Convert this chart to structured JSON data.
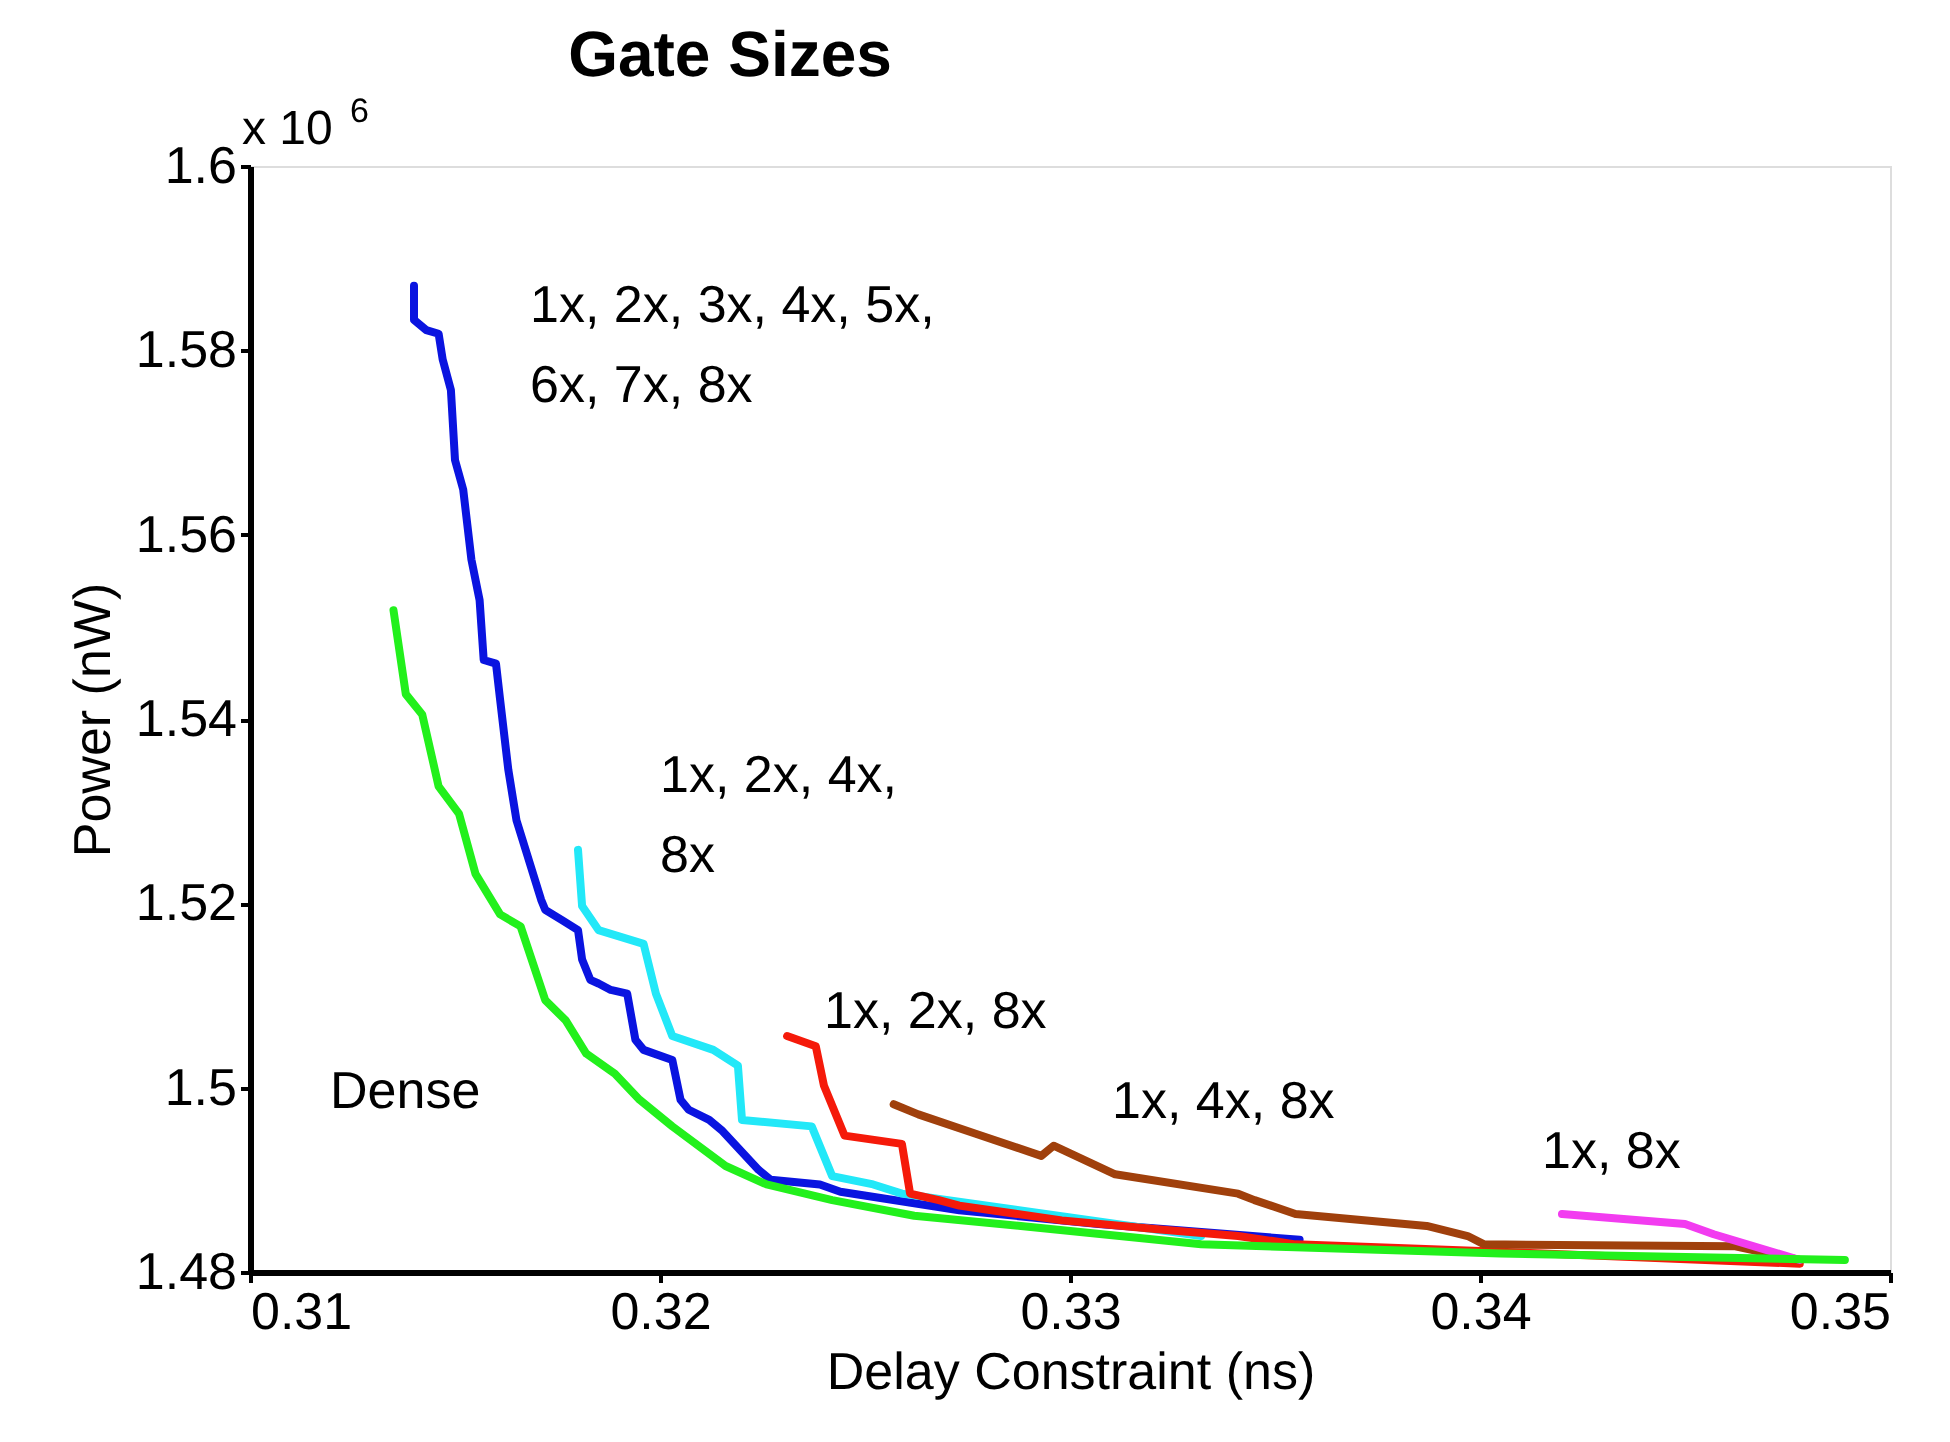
{
  "chart_data": {
    "type": "line",
    "title": "Gate Sizes",
    "xlabel": "Delay Constraint (ns)",
    "ylabel": "Power (nW)",
    "annotations": [
      "x 10$^{6}$"
    ],
    "xlim": [
      0.31,
      0.35
    ],
    "xticks": [
      0.31,
      0.32,
      0.33,
      0.34,
      0.35
    ],
    "ylim": [
      1.48,
      1.6
    ],
    "yticks": [
      1.48,
      1.5,
      1.52,
      1.54,
      1.56,
      1.58,
      1.6
    ],
    "grid": false,
    "legend": false,
    "marker": "none",
    "line_style": "solid",
    "series": [
      {
        "name": "1x, 2x, 3x, 4x, 5x,\n6x, 7x, 8x",
        "color": "#0a14e0",
        "x": [
          0.314,
          0.314,
          0.3143,
          0.3146,
          0.3147,
          0.3149,
          0.315,
          0.3152,
          0.3154,
          0.3156,
          0.3157,
          0.316,
          0.3161,
          0.3163,
          0.3165,
          0.3171,
          0.3172,
          0.3176,
          0.318,
          0.3181,
          0.3183,
          0.3185,
          0.3188,
          0.3192,
          0.3194,
          0.3196,
          0.3203,
          0.3205,
          0.3207,
          0.3212,
          0.3215,
          0.3224,
          0.3227,
          0.3239,
          0.3244,
          0.3273,
          0.3307,
          0.3356
        ],
        "values": [
          1.587,
          1.5833,
          1.5822,
          1.5818,
          1.579,
          1.5757,
          1.5681,
          1.5649,
          1.5573,
          1.5529,
          1.5464,
          1.546,
          1.5421,
          1.5345,
          1.529,
          1.5204,
          1.5193,
          1.5182,
          1.5171,
          1.5139,
          1.5117,
          1.5113,
          1.5106,
          1.5102,
          1.5052,
          1.5041,
          1.503,
          1.4987,
          1.4976,
          1.4965,
          1.4954,
          1.4911,
          1.49,
          1.4895,
          1.4887,
          1.4867,
          1.4852,
          1.4835
        ]
      },
      {
        "name": "1x, 2x, 4x,\n8x",
        "color": "#22e8f8",
        "x": [
          0.318,
          0.3181,
          0.3185,
          0.3196,
          0.3199,
          0.3203,
          0.3213,
          0.3219,
          0.322,
          0.3237,
          0.3242,
          0.3252,
          0.3259,
          0.3332
        ],
        "values": [
          1.5258,
          1.5197,
          1.5171,
          1.5156,
          1.5102,
          1.5056,
          1.5041,
          1.5024,
          1.4965,
          1.4958,
          1.4904,
          1.4895,
          1.4885,
          1.4839
        ]
      },
      {
        "name": "1x, 2x, 8x",
        "color": "#f51a0a",
        "x": [
          0.3231,
          0.3238,
          0.324,
          0.3245,
          0.3259,
          0.3261,
          0.3268,
          0.3273,
          0.3298,
          0.3322,
          0.3341,
          0.3355,
          0.3405,
          0.3478
        ],
        "values": [
          1.5056,
          1.5045,
          1.5002,
          1.4948,
          1.4939,
          1.4885,
          1.4878,
          1.4872,
          1.4856,
          1.4846,
          1.4839,
          1.483,
          1.4822,
          1.4809
        ]
      },
      {
        "name": "1x, 4x, 8x",
        "color": "#a0400c",
        "x": [
          0.3257,
          0.3263,
          0.3277,
          0.3293,
          0.3296,
          0.3311,
          0.3341,
          0.3345,
          0.3355,
          0.3387,
          0.3397,
          0.3401,
          0.3462,
          0.3478
        ],
        "values": [
          1.4982,
          1.4971,
          1.495,
          1.4926,
          1.4937,
          1.4906,
          1.4885,
          1.4878,
          1.4863,
          1.485,
          1.4839,
          1.483,
          1.4828,
          1.4813
        ]
      },
      {
        "name": "1x, 8x",
        "color": "#f23cf0",
        "x": [
          0.342,
          0.345,
          0.3457,
          0.3478
        ],
        "values": [
          1.4863,
          1.4852,
          1.4841,
          1.4813
        ]
      },
      {
        "name": "Dense",
        "color": "#22f01c",
        "x": [
          0.3135,
          0.3138,
          0.3142,
          0.3146,
          0.3151,
          0.3155,
          0.3161,
          0.3166,
          0.3172,
          0.3177,
          0.3182,
          0.3189,
          0.3195,
          0.3203,
          0.3216,
          0.3226,
          0.3242,
          0.3262,
          0.3288,
          0.3332,
          0.3405,
          0.3489
        ],
        "values": [
          1.5518,
          1.5427,
          1.5405,
          1.5327,
          1.5297,
          1.5232,
          1.5188,
          1.5175,
          1.5095,
          1.5073,
          1.5037,
          1.5015,
          1.4987,
          1.4958,
          1.4915,
          1.4895,
          1.4878,
          1.4861,
          1.485,
          1.483,
          1.482,
          1.4813
        ]
      }
    ]
  }
}
